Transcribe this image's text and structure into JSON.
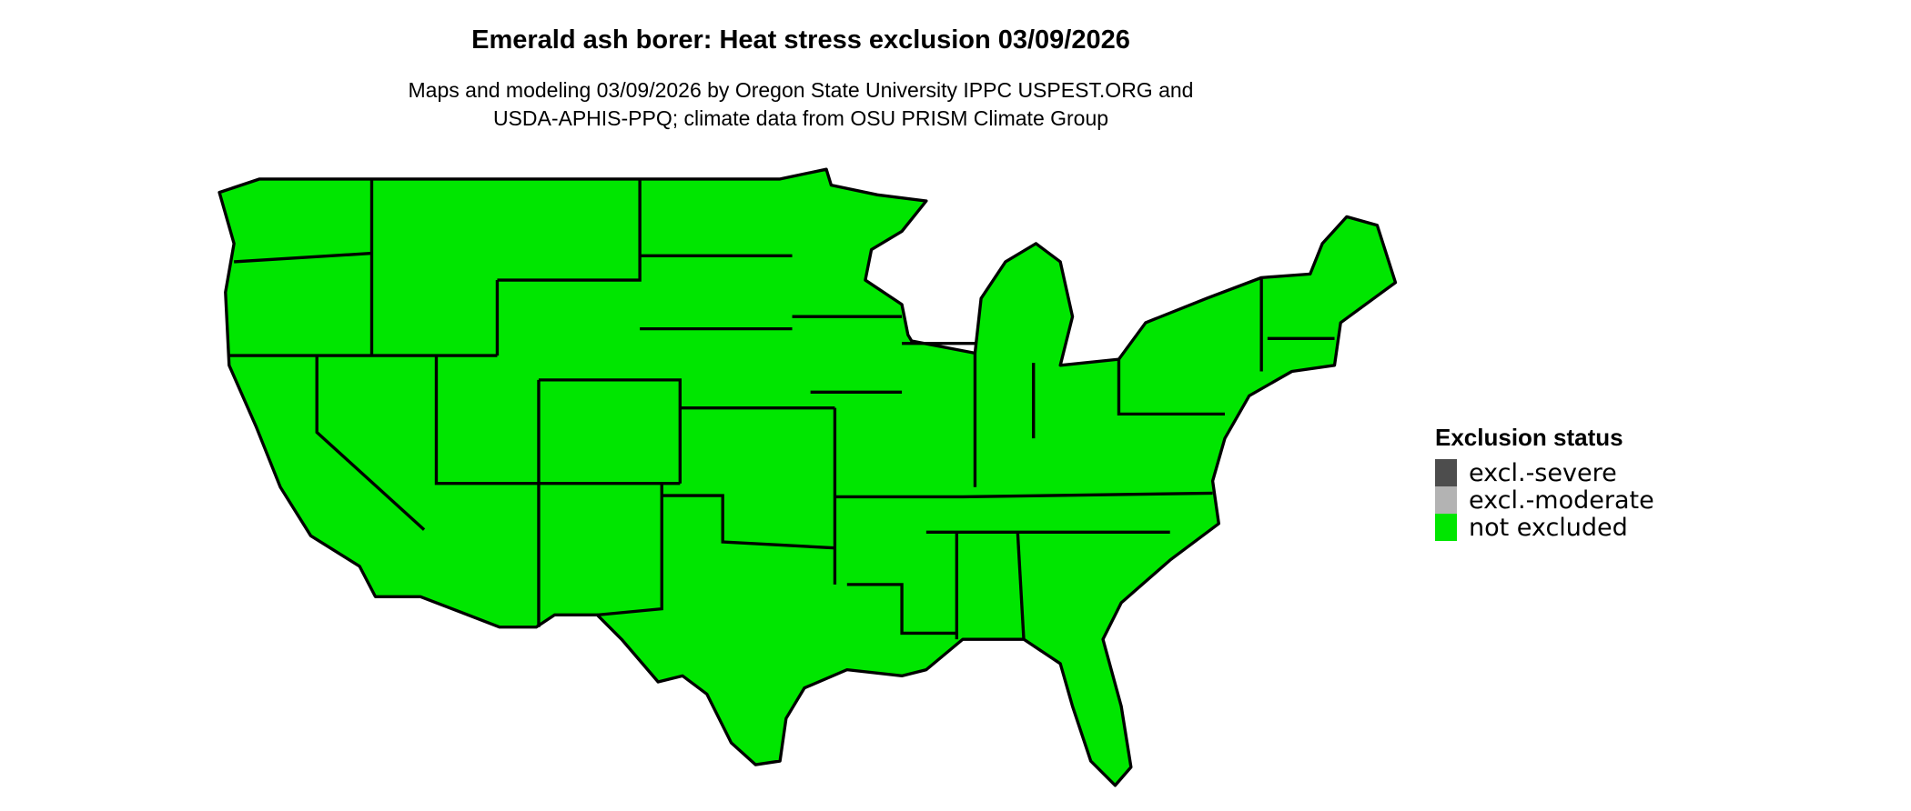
{
  "title": "Emerald ash borer: Heat stress exclusion 03/09/2026",
  "subtitle_lines": [
    "Maps and modeling 03/09/2026 by Oregon State University IPPC USPEST.ORG and",
    "USDA-APHIS-PPQ; climate data from OSU PRISM Climate Group"
  ],
  "map": {
    "region": "Contiguous United States",
    "fill_color": "#00E600",
    "border_color": "#000000",
    "status_shown": "not excluded"
  },
  "legend": {
    "title": "Exclusion status",
    "placement": "right",
    "items": [
      {
        "label": "excl.-severe",
        "color": "#4D4D4D"
      },
      {
        "label": "excl.-moderate",
        "color": "#B3B3B3"
      },
      {
        "label": "not excluded",
        "color": "#00E600"
      }
    ]
  }
}
